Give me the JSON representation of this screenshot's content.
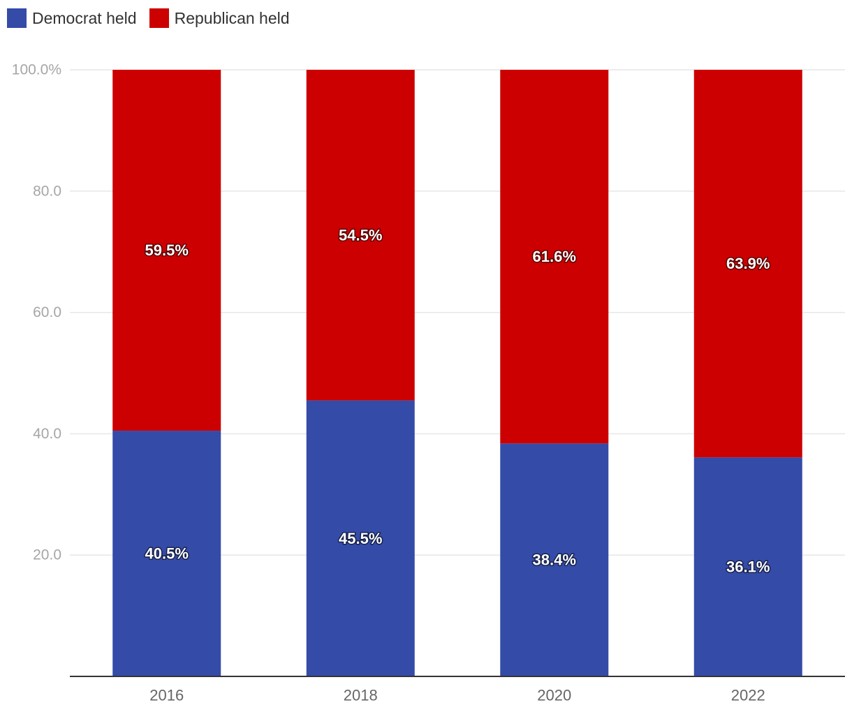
{
  "chart_data": {
    "type": "bar",
    "stacked": true,
    "categories": [
      "2016",
      "2018",
      "2020",
      "2022"
    ],
    "series": [
      {
        "name": "Democrat held",
        "values": [
          40.5,
          45.5,
          38.4,
          36.1
        ],
        "color": "#344ba8",
        "labels": [
          "40.5%",
          "45.5%",
          "38.4%",
          "36.1%"
        ]
      },
      {
        "name": "Republican held",
        "values": [
          59.5,
          54.5,
          61.6,
          63.9
        ],
        "color": "#cc0000",
        "labels": [
          "59.5%",
          "54.5%",
          "61.6%",
          "63.9%"
        ]
      }
    ],
    "ylim": [
      0,
      100
    ],
    "yticks": [
      {
        "value": 20,
        "label": "20.0"
      },
      {
        "value": 40,
        "label": "40.0"
      },
      {
        "value": 60,
        "label": "60.0"
      },
      {
        "value": 80,
        "label": "80.0"
      },
      {
        "value": 100,
        "label": "100.0%"
      }
    ],
    "grid": true,
    "legend_position": "top-left",
    "gridline_color": "#e6e6e6",
    "baseline_color": "#333333"
  }
}
